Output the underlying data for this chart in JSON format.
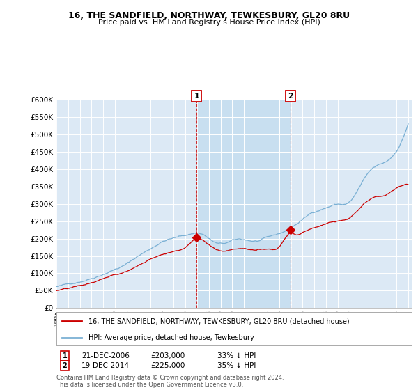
{
  "title1": "16, THE SANDFIELD, NORTHWAY, TEWKESBURY, GL20 8RU",
  "title2": "Price paid vs. HM Land Registry's House Price Index (HPI)",
  "legend_red": "16, THE SANDFIELD, NORTHWAY, TEWKESBURY, GL20 8RU (detached house)",
  "legend_blue": "HPI: Average price, detached house, Tewkesbury",
  "annotation1_date": "21-DEC-2006",
  "annotation1_price": "£203,000",
  "annotation1_hpi": "33% ↓ HPI",
  "annotation2_date": "19-DEC-2014",
  "annotation2_price": "£225,000",
  "annotation2_hpi": "35% ↓ HPI",
  "footer": "Contains HM Land Registry data © Crown copyright and database right 2024.\nThis data is licensed under the Open Government Licence v3.0.",
  "plot_bg": "#dce9f5",
  "shade_color": "#c8dff0",
  "fig_bg": "#ffffff",
  "red_color": "#cc0000",
  "blue_color": "#7ab0d4",
  "grid_color": "#ffffff",
  "marker1_x": 2006.97,
  "marker2_x": 2014.97,
  "marker1_y_red": 203000,
  "marker2_y_red": 225000,
  "ylim": [
    0,
    600000
  ],
  "xlim": [
    1995,
    2025.3
  ],
  "yticks": [
    0,
    50000,
    100000,
    150000,
    200000,
    250000,
    300000,
    350000,
    400000,
    450000,
    500000,
    550000,
    600000
  ]
}
